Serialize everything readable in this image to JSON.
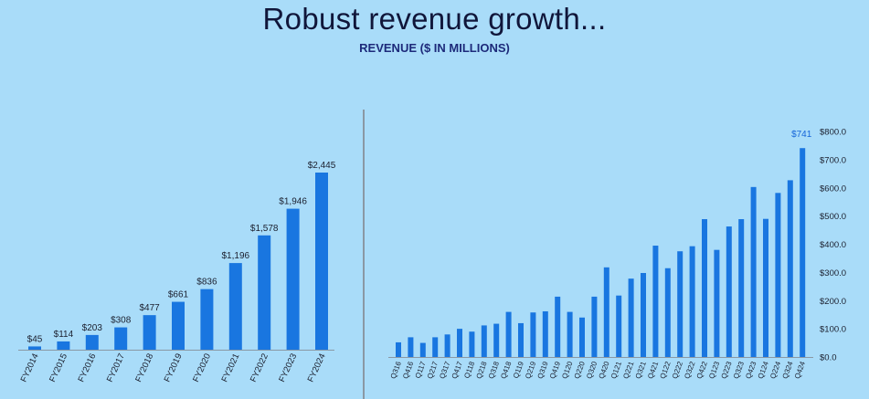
{
  "header": {
    "title": "Robust revenue growth...",
    "subtitle": "REVENUE ($ IN MILLIONS)"
  },
  "colors": {
    "background": "#a9dcf9",
    "bar": "#1976e0",
    "highlight_label": "#1565d8",
    "title": "#10163a",
    "subtitle": "#1d2a7a"
  },
  "chart_data": [
    {
      "type": "bar",
      "categories": [
        "FY2014",
        "FY2015",
        "FY2016",
        "FY2017",
        "FY2018",
        "FY2019",
        "FY2020",
        "FY2021",
        "FY2022",
        "FY2023",
        "FY2024"
      ],
      "values": [
        45,
        114,
        203,
        308,
        477,
        661,
        836,
        1196,
        1578,
        1946,
        2445
      ],
      "data_labels": [
        "$45",
        "$114",
        "$203",
        "$308",
        "$477",
        "$661",
        "$836",
        "$1,196",
        "$1,578",
        "$1,946",
        "$2,445"
      ],
      "title": "",
      "xlabel": "",
      "ylabel": "",
      "ylim": [
        0,
        2445
      ],
      "grid": false
    },
    {
      "type": "bar",
      "categories": [
        "Q316",
        "Q416",
        "Q117",
        "Q217",
        "Q317",
        "Q417",
        "Q118",
        "Q218",
        "Q318",
        "Q418",
        "Q119",
        "Q219",
        "Q319",
        "Q419",
        "Q120",
        "Q220",
        "Q320",
        "Q420",
        "Q121",
        "Q221",
        "Q321",
        "Q421",
        "Q122",
        "Q222",
        "Q322",
        "Q422",
        "Q123",
        "Q223",
        "Q323",
        "Q423",
        "Q124",
        "Q224",
        "Q324",
        "Q424"
      ],
      "values": [
        52,
        70,
        50,
        70,
        80,
        100,
        90,
        112,
        118,
        160,
        120,
        158,
        162,
        214,
        160,
        140,
        214,
        318,
        218,
        278,
        298,
        395,
        315,
        375,
        393,
        489,
        380,
        463,
        489,
        603,
        490,
        582,
        627,
        741
      ],
      "data_labels": [
        "$741"
      ],
      "title": "",
      "xlabel": "",
      "ylabel": "",
      "ylim": [
        0,
        800
      ],
      "y_ticks": [
        0,
        100,
        200,
        300,
        400,
        500,
        600,
        700,
        800
      ],
      "y_tick_labels": [
        "$0.0",
        "$100.0",
        "$200.0",
        "$300.0",
        "$400.0",
        "$500.0",
        "$600.0",
        "$700.0",
        "$800.0"
      ],
      "y_axis_position": "right",
      "grid": false
    }
  ]
}
